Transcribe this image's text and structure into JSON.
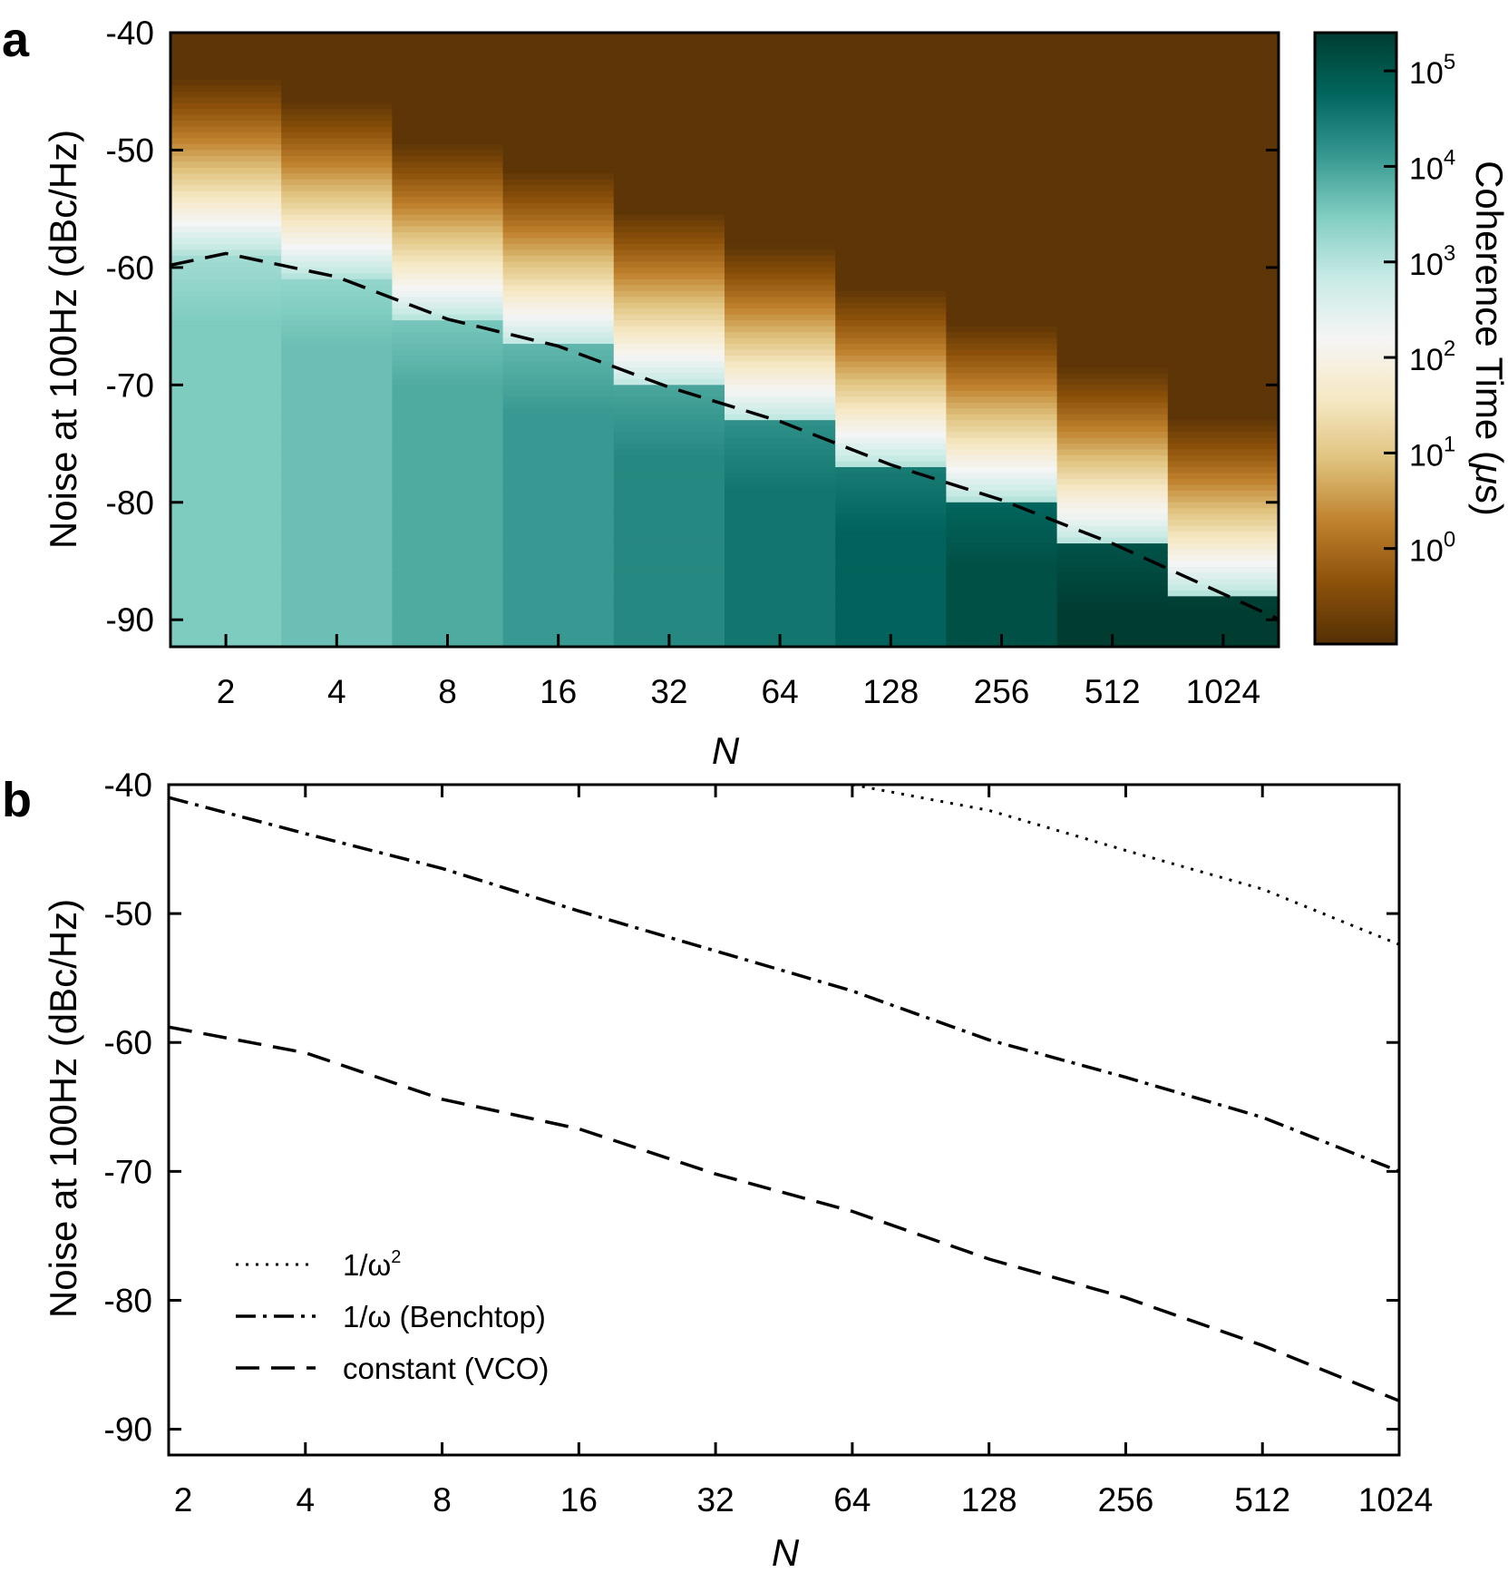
{
  "colors": {
    "cmap": [
      "#543005",
      "#8c510a",
      "#bf812d",
      "#dfc27d",
      "#f6e8c3",
      "#f5f5f5",
      "#c7eae5",
      "#80cdc1",
      "#35978f",
      "#01665e",
      "#003c30"
    ],
    "ink": "#000000"
  },
  "chart_data": [
    {
      "panel": "a",
      "type": "heatmap",
      "xlabel": "N",
      "ylabel": "Noise at 100Hz (dBc/Hz)",
      "x_categories": [
        "2",
        "4",
        "8",
        "16",
        "32",
        "64",
        "128",
        "256",
        "512",
        "1024"
      ],
      "ylim": [
        -92.3,
        -40
      ],
      "yticks": [
        "-40",
        "-50",
        "-60",
        "-70",
        "-80",
        "-90"
      ],
      "ytick_values": [
        -40,
        -50,
        -60,
        -70,
        -80,
        -90
      ],
      "colorbar": {
        "label": "Coherence Time (μs)",
        "label_parts": [
          "Coherence Time (",
          "μ",
          "s)"
        ],
        "scale": "log",
        "log10_range": [
          -1,
          5.4
        ],
        "tick_base": "10",
        "tick_exponents": [
          "0",
          "1",
          "2",
          "3",
          "4",
          "5"
        ]
      },
      "threshold_curve": {
        "style": "dashed",
        "noise_dBc_per_Hz": [
          -58.8,
          -60.8,
          -64.4,
          -66.7,
          -70.2,
          -73.1,
          -76.8,
          -79.8,
          -83.5,
          -87.8
        ]
      },
      "log10_T_below_threshold": [
        3.15,
        3.3,
        3.55,
        3.75,
        3.95,
        4.2,
        4.45,
        4.75,
        5.05,
        5.3
      ]
    },
    {
      "panel": "b",
      "type": "line",
      "xlabel": "N",
      "ylabel": "Noise at 100Hz (dBc/Hz)",
      "x_categories": [
        "2",
        "4",
        "8",
        "16",
        "32",
        "64",
        "128",
        "256",
        "512",
        "1024"
      ],
      "ylim": [
        -92,
        -40
      ],
      "yticks": [
        "-40",
        "-50",
        "-60",
        "-70",
        "-80",
        "-90"
      ],
      "ytick_values": [
        -40,
        -50,
        -60,
        -70,
        -80,
        -90
      ],
      "series": [
        {
          "name": "1/ω²",
          "label_base": "1/ω",
          "label_sup": "2",
          "style": "dotted",
          "values": [
            null,
            null,
            null,
            null,
            null,
            -40.0,
            -42.0,
            -45.1,
            -48.1,
            -52.4
          ]
        },
        {
          "name": "1/ω (Benchtop)",
          "style": "dashdot",
          "values": [
            -41.0,
            -43.8,
            -46.5,
            -49.8,
            -52.9,
            -56.0,
            -59.8,
            -62.7,
            -65.8,
            -70.0
          ]
        },
        {
          "name": "constant (VCO)",
          "style": "dashed",
          "values": [
            -58.8,
            -60.8,
            -64.4,
            -66.7,
            -70.2,
            -73.1,
            -76.8,
            -79.8,
            -83.5,
            -87.8
          ]
        }
      ],
      "legend_position": "lower-left"
    }
  ]
}
